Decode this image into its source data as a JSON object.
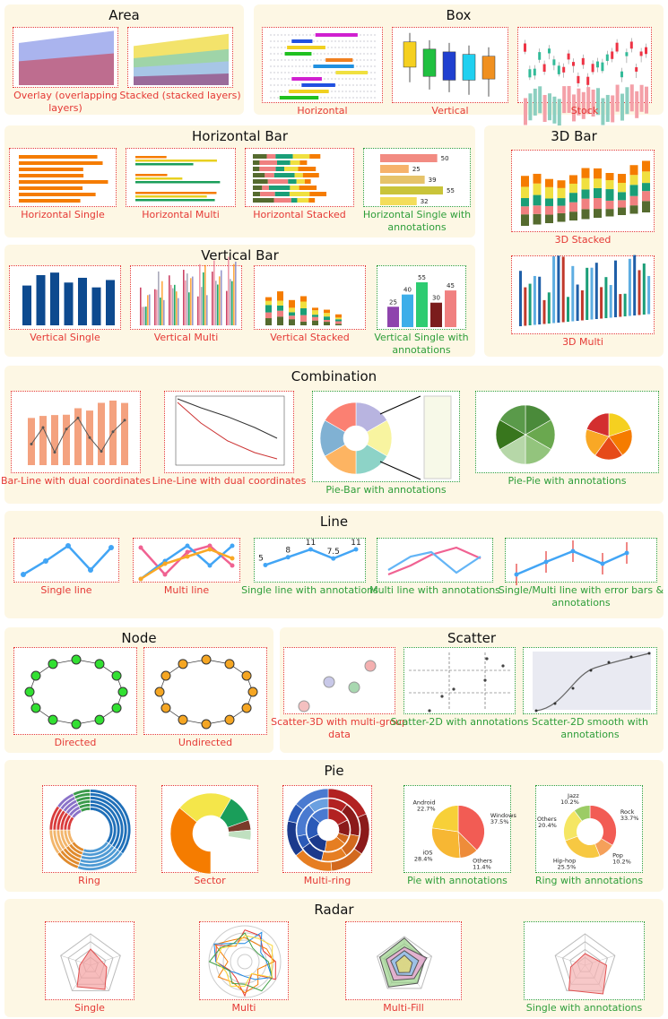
{
  "sections": [
    {
      "title": "Area",
      "items": [
        {
          "caption": "Overlay (overlapping layers)"
        },
        {
          "caption": "Stacked (stacked layers)"
        }
      ]
    },
    {
      "title": "Box",
      "items": [
        {
          "caption": "Horizontal"
        },
        {
          "caption": "Vertical"
        },
        {
          "caption": "Stock"
        }
      ]
    },
    {
      "title": "Horizontal Bar",
      "items": [
        {
          "caption": "Horizontal Single"
        },
        {
          "caption": "Horizontal Multi"
        },
        {
          "caption": "Horizontal Stacked"
        },
        {
          "caption": "Horizontal Single with annotations",
          "values": [
            50,
            25,
            39,
            55,
            32
          ],
          "colors": [
            "#f28b82",
            "#f6b26b",
            "#e6c36a",
            "#c9c43a",
            "#f3dd5a"
          ]
        }
      ]
    },
    {
      "title": "3D Bar",
      "items": [
        {
          "caption": "3D Stacked"
        },
        {
          "caption": "3D Multi"
        }
      ]
    },
    {
      "title": "Vertical Bar",
      "items": [
        {
          "caption": "Vertical Single"
        },
        {
          "caption": "Vertical Multi"
        },
        {
          "caption": "Vertical Stacked"
        },
        {
          "caption": "Vertical Single with annotations",
          "values": [
            25,
            40,
            55,
            30,
            45
          ],
          "colors": [
            "#8e44ad",
            "#3daee9",
            "#2ecc71",
            "#7b1c1c",
            "#f08080"
          ]
        }
      ]
    },
    {
      "title": "Combination",
      "items": [
        {
          "caption": "Bar-Line with dual coordinates"
        },
        {
          "caption": "Line-Line with dual coordinates"
        },
        {
          "caption": "Pie-Bar with annotations"
        },
        {
          "caption": "Pie-Pie with annotations"
        }
      ]
    },
    {
      "title": "Line",
      "items": [
        {
          "caption": "Single line"
        },
        {
          "caption": "Multi line"
        },
        {
          "caption": "Single line with annotations",
          "values": [
            5,
            8,
            11,
            7.5,
            11
          ],
          "color": "#42a5f5"
        },
        {
          "caption": "Multi line with annotations"
        },
        {
          "caption": "Single/Multi line with error bars & annotations"
        }
      ]
    },
    {
      "title": "Node",
      "items": [
        {
          "caption": "Directed"
        },
        {
          "caption": "Undirected"
        }
      ]
    },
    {
      "title": "Scatter",
      "items": [
        {
          "caption": "Scatter-3D with multi-group data"
        },
        {
          "caption": "Scatter-2D with annotations"
        },
        {
          "caption": "Scatter-2D smooth with annotations"
        }
      ]
    },
    {
      "title": "Pie",
      "items": [
        {
          "caption": "Ring"
        },
        {
          "caption": "Sector"
        },
        {
          "caption": "Multi-ring"
        },
        {
          "caption": "Pie with annotations",
          "categories": [
            "Windows",
            "Others",
            "iOS",
            "Android"
          ],
          "values": [
            37.5,
            11.4,
            28.4,
            22.7
          ],
          "value_labels": [
            "37.5%",
            "11.4%",
            "28.4%",
            "22.7%"
          ],
          "colors": [
            "#f25c54",
            "#ee8c3a",
            "#f7b733",
            "#f7d038"
          ]
        },
        {
          "caption": "Ring with annotations",
          "categories": [
            "Rock",
            "Pop",
            "Hip-hop",
            "Others",
            "Jazz"
          ],
          "values": [
            33.7,
            10.2,
            25.5,
            20.4,
            10.2
          ],
          "value_labels": [
            "33.7%",
            "10.2%",
            "25.5%",
            "20.4%",
            "10.2%"
          ],
          "colors": [
            "#f25c54",
            "#f5a05a",
            "#f7c842",
            "#f5e663",
            "#9ccc65"
          ]
        }
      ]
    },
    {
      "title": "Radar",
      "items": [
        {
          "caption": "Single"
        },
        {
          "caption": "Multi"
        },
        {
          "caption": "Multi-Fill"
        },
        {
          "caption": "Single with annotations"
        }
      ]
    }
  ]
}
